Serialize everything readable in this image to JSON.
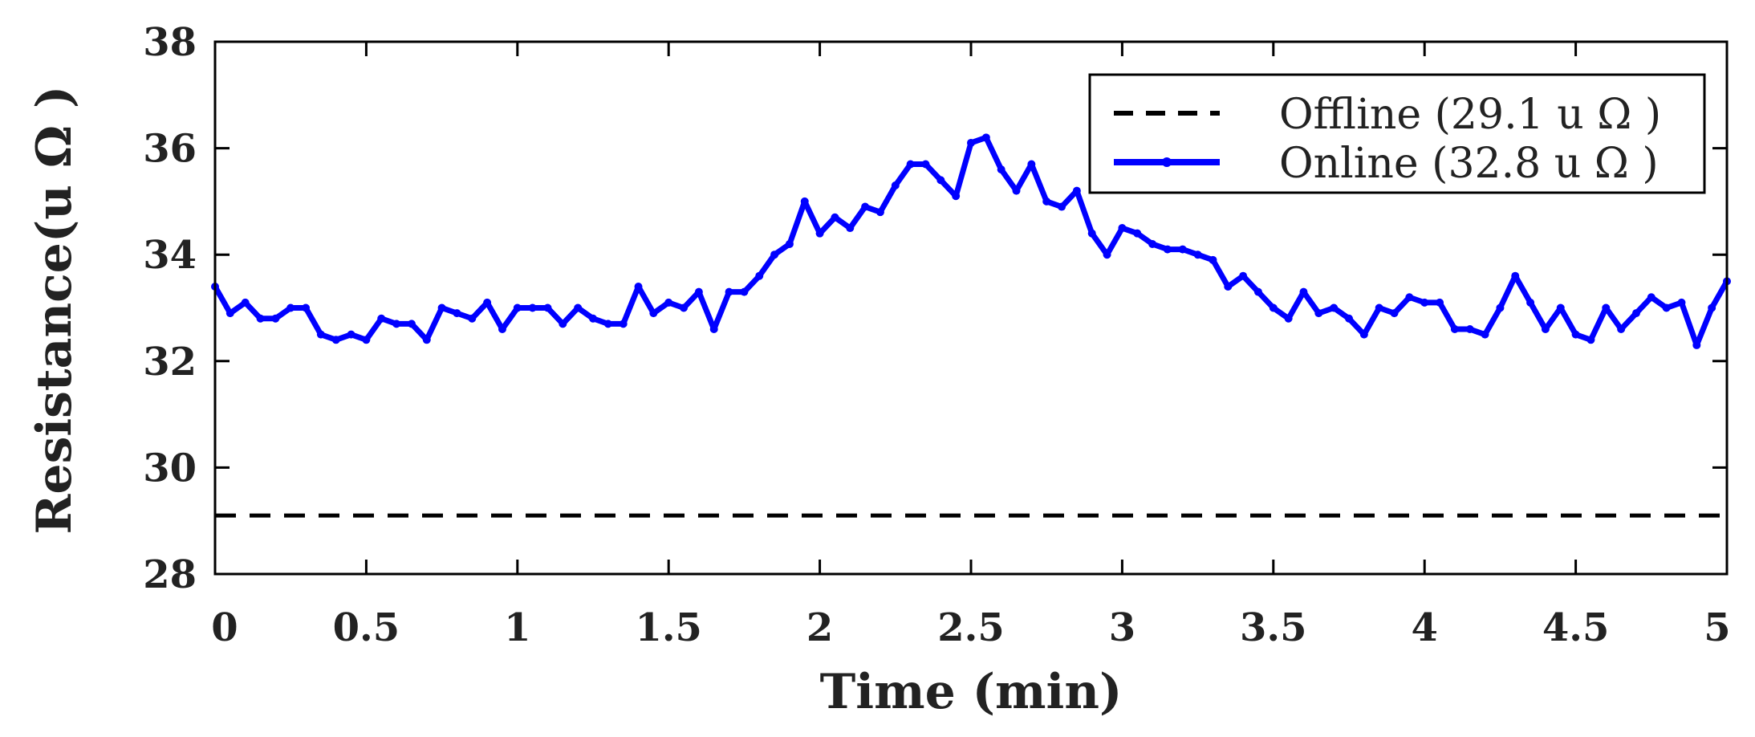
{
  "chart_data": {
    "type": "line",
    "xlabel": "Time (min)",
    "ylabel": "Resistance(u Ω )",
    "xlim": [
      0,
      5
    ],
    "ylim": [
      28,
      38
    ],
    "xticks": [
      0,
      0.5,
      1,
      1.5,
      2,
      2.5,
      3,
      3.5,
      4,
      4.5,
      5
    ],
    "xtick_labels": [
      "0",
      "0.5",
      "1",
      "1.5",
      "2",
      "2.5",
      "3",
      "3.5",
      "4",
      "4.5",
      "5"
    ],
    "yticks": [
      28,
      30,
      32,
      34,
      36,
      38
    ],
    "ytick_labels": [
      "28",
      "30",
      "32",
      "34",
      "36",
      "38"
    ],
    "grid": false,
    "legend": {
      "position": "top-right"
    },
    "series": [
      {
        "name": "Offline (29.1 u Ω )",
        "style": "dashed",
        "color": "#000000",
        "x": [
          0,
          5
        ],
        "y": [
          29.1,
          29.1
        ]
      },
      {
        "name": "Online (32.8 u Ω )",
        "style": "solid-markers",
        "color": "#0000ff",
        "x": [
          0,
          0.05,
          0.1,
          0.15,
          0.2,
          0.25,
          0.3,
          0.35,
          0.4,
          0.45,
          0.5,
          0.55,
          0.6,
          0.65,
          0.7,
          0.75,
          0.8,
          0.85,
          0.9,
          0.95,
          1.0,
          1.05,
          1.1,
          1.15,
          1.2,
          1.25,
          1.3,
          1.35,
          1.4,
          1.45,
          1.5,
          1.55,
          1.6,
          1.65,
          1.7,
          1.75,
          1.8,
          1.85,
          1.9,
          1.95,
          2.0,
          2.05,
          2.1,
          2.15,
          2.2,
          2.25,
          2.3,
          2.35,
          2.4,
          2.45,
          2.5,
          2.55,
          2.6,
          2.65,
          2.7,
          2.75,
          2.8,
          2.85,
          2.9,
          2.95,
          3.0,
          3.05,
          3.1,
          3.15,
          3.2,
          3.25,
          3.3,
          3.35,
          3.4,
          3.45,
          3.5,
          3.55,
          3.6,
          3.65,
          3.7,
          3.75,
          3.8,
          3.85,
          3.9,
          3.95,
          4.0,
          4.05,
          4.1,
          4.15,
          4.2,
          4.25,
          4.3,
          4.35,
          4.4,
          4.45,
          4.5,
          4.55,
          4.6,
          4.65,
          4.7,
          4.75,
          4.8,
          4.85,
          4.9,
          4.95,
          5.0
        ],
        "y": [
          33.4,
          32.9,
          33.1,
          32.8,
          32.8,
          33.0,
          33.0,
          32.5,
          32.4,
          32.5,
          32.4,
          32.8,
          32.7,
          32.7,
          32.4,
          33.0,
          32.9,
          32.8,
          33.1,
          32.6,
          33.0,
          33.0,
          33.0,
          32.7,
          33.0,
          32.8,
          32.7,
          32.7,
          33.4,
          32.9,
          33.1,
          33.0,
          33.3,
          32.6,
          33.3,
          33.3,
          33.6,
          34.0,
          34.2,
          35.0,
          34.4,
          34.7,
          34.5,
          34.9,
          34.8,
          35.3,
          35.7,
          35.7,
          35.4,
          35.1,
          36.1,
          36.2,
          35.6,
          35.2,
          35.7,
          35.0,
          34.9,
          35.2,
          34.4,
          34.0,
          34.5,
          34.4,
          34.2,
          34.1,
          34.1,
          34.0,
          33.9,
          33.4,
          33.6,
          33.3,
          33.0,
          32.8,
          33.3,
          32.9,
          33.0,
          32.8,
          32.5,
          33.0,
          32.9,
          33.2,
          33.1,
          33.1,
          32.6,
          32.6,
          32.5,
          33.0,
          33.6,
          33.1,
          32.6,
          33.0,
          32.5,
          32.4,
          33.0,
          32.6,
          32.9,
          33.2,
          33.0,
          33.1,
          32.3,
          33.0,
          33.5
        ]
      }
    ]
  }
}
